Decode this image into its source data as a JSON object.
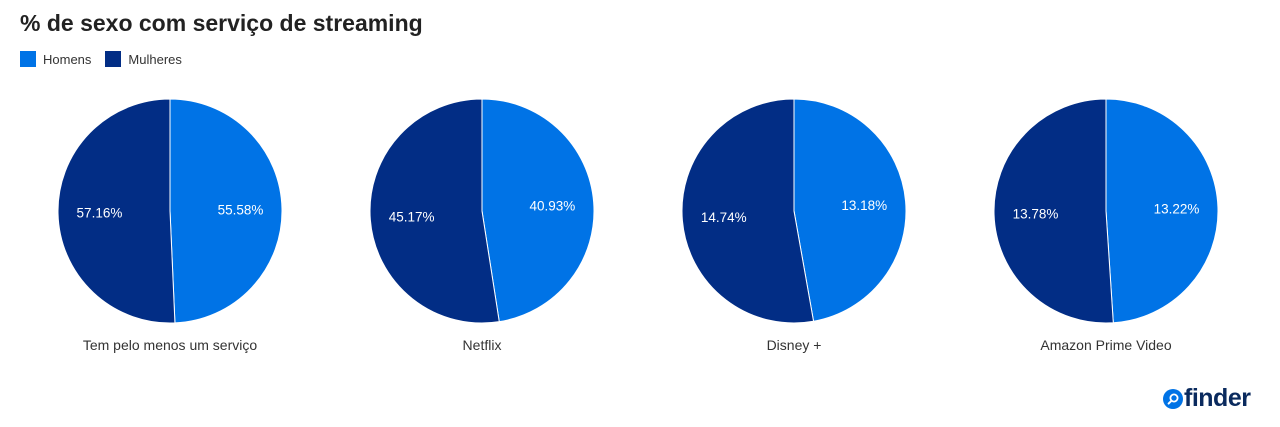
{
  "title": "% de sexo com serviço de streaming",
  "legend": [
    {
      "label": "Homens",
      "color": "#0073e6"
    },
    {
      "label": "Mulheres",
      "color": "#022d85"
    }
  ],
  "chart_data": {
    "type": "pie",
    "series_names": [
      "Homens",
      "Mulheres"
    ],
    "colors": {
      "Homens": "#0073e6",
      "Mulheres": "#022d85"
    },
    "pies": [
      {
        "category": "Tem pelo menos um serviço",
        "Homens": 55.58,
        "Mulheres": 57.16,
        "labels": {
          "Homens": "55.58%",
          "Mulheres": "57.16%"
        }
      },
      {
        "category": "Netflix",
        "Homens": 40.93,
        "Mulheres": 45.17,
        "labels": {
          "Homens": "40.93%",
          "Mulheres": "45.17%"
        }
      },
      {
        "category": "Disney +",
        "Homens": 13.18,
        "Mulheres": 14.74,
        "labels": {
          "Homens": "13.18%",
          "Mulheres": "14.74%"
        }
      },
      {
        "category": "Amazon Prime Video",
        "Homens": 13.22,
        "Mulheres": 13.78,
        "labels": {
          "Homens": "13.22%",
          "Mulheres": "13.78%"
        }
      }
    ],
    "legend_position": "top-left"
  },
  "brand": {
    "logo_text": "finder",
    "logo_icon": "search-icon"
  }
}
